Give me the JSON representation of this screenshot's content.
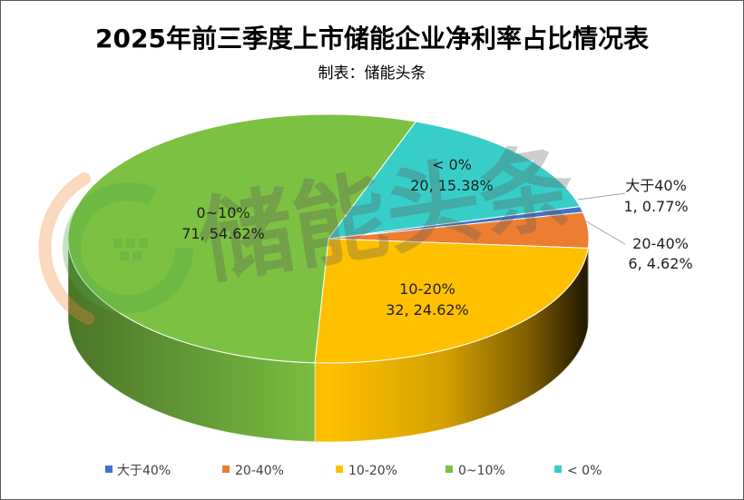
{
  "chart_data": {
    "type": "pie",
    "three_d": true,
    "title": "2025年前三季度上市储能企业净利率占比情况表",
    "subtitle": "制表：储能头条",
    "categories": [
      "大于40%",
      "20-40%",
      "10-20%",
      "0~10%",
      "< 0%"
    ],
    "values": [
      1,
      6,
      32,
      71,
      20
    ],
    "data_labels": [
      "1, 0.77%",
      "6, 4.62%",
      "32, 24.62%",
      "71, 54.62%",
      "20, 15.38%"
    ],
    "colors": [
      "#4472C4",
      "#ED7D31",
      "#FFC000",
      "#7DC142",
      "#38CEC8"
    ],
    "legend": "bottom"
  },
  "watermark": "储能头条"
}
